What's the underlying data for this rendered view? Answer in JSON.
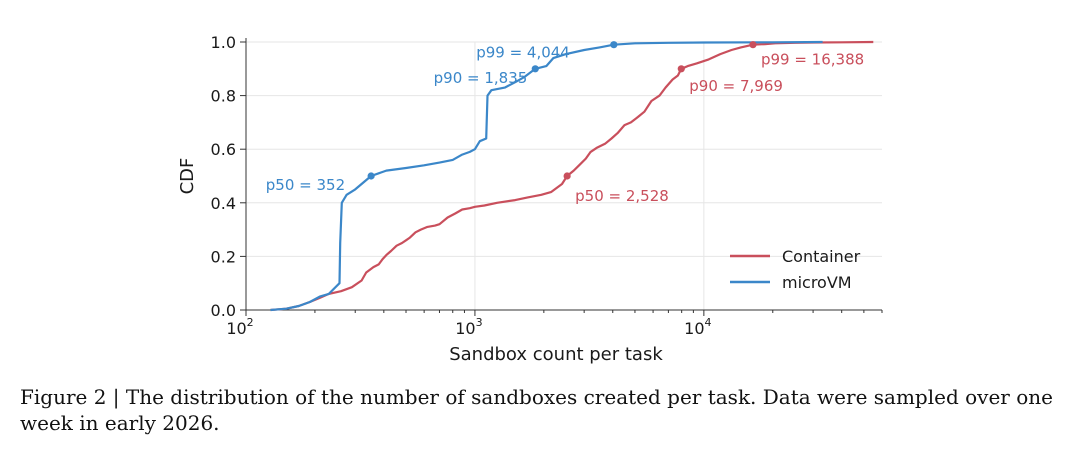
{
  "chart_data": {
    "type": "line",
    "xlabel": "Sandbox count per task",
    "ylabel": "CDF",
    "x_scale": "log",
    "xlim": [
      100,
      60000
    ],
    "ylim": [
      0,
      1
    ],
    "grid": true,
    "legend_position": "bottom-right",
    "x_ticks": [
      {
        "value": 100,
        "base": "10",
        "exp": "2"
      },
      {
        "value": 1000,
        "base": "10",
        "exp": "3"
      },
      {
        "value": 10000,
        "base": "10",
        "exp": "4"
      }
    ],
    "y_ticks": [
      {
        "value": 0.0,
        "label": "0.0"
      },
      {
        "value": 0.2,
        "label": "0.2"
      },
      {
        "value": 0.4,
        "label": "0.4"
      },
      {
        "value": 0.6,
        "label": "0.6"
      },
      {
        "value": 0.8,
        "label": "0.8"
      },
      {
        "value": 1.0,
        "label": "1.0"
      }
    ],
    "series": [
      {
        "name": "Container",
        "color": "#c94f5c",
        "points": [
          [
            128,
            0.0
          ],
          [
            150,
            0.005
          ],
          [
            170,
            0.015
          ],
          [
            190,
            0.03
          ],
          [
            210,
            0.045
          ],
          [
            230,
            0.06
          ],
          [
            260,
            0.07
          ],
          [
            290,
            0.085
          ],
          [
            320,
            0.11
          ],
          [
            335,
            0.14
          ],
          [
            360,
            0.16
          ],
          [
            380,
            0.17
          ],
          [
            395,
            0.19
          ],
          [
            410,
            0.205
          ],
          [
            430,
            0.22
          ],
          [
            455,
            0.24
          ],
          [
            480,
            0.25
          ],
          [
            500,
            0.26
          ],
          [
            520,
            0.27
          ],
          [
            550,
            0.29
          ],
          [
            580,
            0.3
          ],
          [
            620,
            0.31
          ],
          [
            670,
            0.315
          ],
          [
            700,
            0.32
          ],
          [
            760,
            0.345
          ],
          [
            820,
            0.36
          ],
          [
            880,
            0.375
          ],
          [
            950,
            0.38
          ],
          [
            1000,
            0.385
          ],
          [
            1100,
            0.39
          ],
          [
            1250,
            0.4
          ],
          [
            1500,
            0.41
          ],
          [
            1700,
            0.42
          ],
          [
            1950,
            0.43
          ],
          [
            2150,
            0.44
          ],
          [
            2400,
            0.47
          ],
          [
            2528,
            0.5
          ],
          [
            2700,
            0.52
          ],
          [
            2850,
            0.54
          ],
          [
            3050,
            0.565
          ],
          [
            3200,
            0.59
          ],
          [
            3400,
            0.605
          ],
          [
            3700,
            0.62
          ],
          [
            3950,
            0.64
          ],
          [
            4200,
            0.66
          ],
          [
            4500,
            0.69
          ],
          [
            4800,
            0.7
          ],
          [
            5150,
            0.72
          ],
          [
            5500,
            0.74
          ],
          [
            5900,
            0.78
          ],
          [
            6400,
            0.8
          ],
          [
            6800,
            0.83
          ],
          [
            7300,
            0.86
          ],
          [
            7700,
            0.875
          ],
          [
            7969,
            0.9
          ],
          [
            8500,
            0.91
          ],
          [
            9300,
            0.92
          ],
          [
            10500,
            0.935
          ],
          [
            11800,
            0.955
          ],
          [
            13200,
            0.97
          ],
          [
            14500,
            0.98
          ],
          [
            16388,
            0.99
          ],
          [
            18500,
            0.992
          ],
          [
            20500,
            0.995
          ],
          [
            25000,
            0.997
          ],
          [
            30000,
            0.998
          ],
          [
            40000,
            0.999
          ],
          [
            55000,
            1.0
          ]
        ]
      },
      {
        "name": "microVM",
        "color": "#3b87c9",
        "points": [
          [
            128,
            0.0
          ],
          [
            150,
            0.005
          ],
          [
            170,
            0.015
          ],
          [
            190,
            0.03
          ],
          [
            210,
            0.05
          ],
          [
            230,
            0.06
          ],
          [
            256,
            0.1
          ],
          [
            258,
            0.25
          ],
          [
            262,
            0.4
          ],
          [
            275,
            0.43
          ],
          [
            300,
            0.45
          ],
          [
            330,
            0.48
          ],
          [
            352,
            0.5
          ],
          [
            380,
            0.51
          ],
          [
            410,
            0.52
          ],
          [
            500,
            0.53
          ],
          [
            600,
            0.54
          ],
          [
            700,
            0.55
          ],
          [
            800,
            0.56
          ],
          [
            880,
            0.58
          ],
          [
            950,
            0.59
          ],
          [
            1000,
            0.6
          ],
          [
            1050,
            0.63
          ],
          [
            1120,
            0.64
          ],
          [
            1135,
            0.8
          ],
          [
            1180,
            0.82
          ],
          [
            1350,
            0.83
          ],
          [
            1500,
            0.85
          ],
          [
            1650,
            0.87
          ],
          [
            1835,
            0.9
          ],
          [
            2050,
            0.91
          ],
          [
            2200,
            0.94
          ],
          [
            2500,
            0.955
          ],
          [
            3000,
            0.97
          ],
          [
            3500,
            0.98
          ],
          [
            4044,
            0.99
          ],
          [
            5000,
            0.995
          ],
          [
            7000,
            0.997
          ],
          [
            10000,
            0.998
          ],
          [
            20000,
            0.999
          ],
          [
            33000,
            1.0
          ]
        ]
      }
    ],
    "annotations": [
      {
        "series": "microVM",
        "text": "p99 = 4,044",
        "x": 4044,
        "y": 0.99,
        "anchor": "end",
        "dx": -44,
        "dy": 13
      },
      {
        "series": "microVM",
        "text": "p90 = 1,835",
        "x": 1835,
        "y": 0.9,
        "anchor": "end",
        "dx": -8,
        "dy": 14
      },
      {
        "series": "microVM",
        "text": "p50 = 352",
        "x": 352,
        "y": 0.5,
        "anchor": "end",
        "dx": -26,
        "dy": 14
      },
      {
        "series": "Container",
        "text": "p99 = 16,388",
        "x": 16388,
        "y": 0.99,
        "anchor": "start",
        "dx": 8,
        "dy": 20
      },
      {
        "series": "Container",
        "text": "p90 = 7,969",
        "x": 7969,
        "y": 0.9,
        "anchor": "start",
        "dx": 8,
        "dy": 22
      },
      {
        "series": "Container",
        "text": "p50 = 2,528",
        "x": 2528,
        "y": 0.5,
        "anchor": "start",
        "dx": 8,
        "dy": 25
      }
    ]
  },
  "caption": "Figure 2 | The distribution of the number of sandboxes created per task. Data were sampled over one week in early 2026."
}
